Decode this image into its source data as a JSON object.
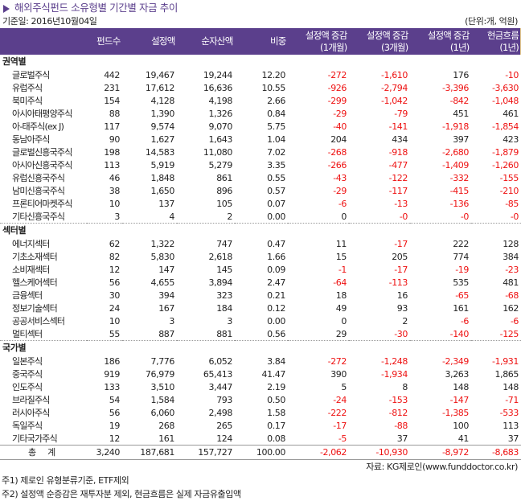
{
  "title": "해외주식펀드 소유형별 기간별 자금 추이",
  "base_date": "기준일: 2016년10월04일",
  "unit": "(단위:개, 억원)",
  "columns": [
    "",
    "펀드수",
    "설정액",
    "순자산액",
    "비중",
    "설정액 증감\n(1개월)",
    "설정액 증감\n(3개월)",
    "설정액 증감\n(1년)",
    "현금흐름\n(1년)"
  ],
  "sections": [
    {
      "name": "권역별",
      "rows": [
        [
          "글로벌주식",
          "442",
          "19,467",
          "19,244",
          "12.20",
          "-272",
          "-1,610",
          "176",
          "-10"
        ],
        [
          "유럽주식",
          "231",
          "17,612",
          "16,636",
          "10.55",
          "-926",
          "-2,794",
          "-3,396",
          "-3,630"
        ],
        [
          "북미주식",
          "154",
          "4,128",
          "4,198",
          "2.66",
          "-299",
          "-1,042",
          "-842",
          "-1,048"
        ],
        [
          "아시아태평양주식",
          "88",
          "1,390",
          "1,326",
          "0.84",
          "-29",
          "-79",
          "451",
          "461"
        ],
        [
          "아-태주식(ex J)",
          "117",
          "9,574",
          "9,070",
          "5.75",
          "-40",
          "-141",
          "-1,918",
          "-1,854"
        ],
        [
          "동남아주식",
          "90",
          "1,627",
          "1,643",
          "1.04",
          "204",
          "434",
          "397",
          "423"
        ],
        [
          "글로벌신흥국주식",
          "198",
          "14,583",
          "11,080",
          "7.02",
          "-268",
          "-918",
          "-2,680",
          "-1,879"
        ],
        [
          "아시아신흥국주식",
          "113",
          "5,919",
          "5,279",
          "3.35",
          "-266",
          "-477",
          "-1,409",
          "-1,260"
        ],
        [
          "유럽신흥국주식",
          "46",
          "1,848",
          "861",
          "0.55",
          "-43",
          "-122",
          "-332",
          "-155"
        ],
        [
          "남미신흥국주식",
          "38",
          "1,650",
          "896",
          "0.57",
          "-29",
          "-117",
          "-415",
          "-210"
        ],
        [
          "프론티어마켓주식",
          "10",
          "137",
          "105",
          "0.07",
          "-6",
          "-13",
          "-136",
          "-85"
        ],
        [
          "기타신흥국주식",
          "3",
          "4",
          "2",
          "0.00",
          "0",
          "-0",
          "-0",
          "-0"
        ]
      ]
    },
    {
      "name": "섹터별",
      "rows": [
        [
          "에너지섹터",
          "62",
          "1,322",
          "747",
          "0.47",
          "11",
          "-17",
          "222",
          "128"
        ],
        [
          "기초소재섹터",
          "82",
          "5,830",
          "2,618",
          "1.66",
          "15",
          "205",
          "774",
          "384"
        ],
        [
          "소비재섹터",
          "12",
          "147",
          "145",
          "0.09",
          "-1",
          "-17",
          "-19",
          "-23"
        ],
        [
          "헬스케어섹터",
          "56",
          "4,655",
          "3,894",
          "2.47",
          "-64",
          "-113",
          "535",
          "481"
        ],
        [
          "금융섹터",
          "30",
          "394",
          "323",
          "0.21",
          "18",
          "16",
          "-65",
          "-68"
        ],
        [
          "정보기술섹터",
          "24",
          "167",
          "184",
          "0.12",
          "49",
          "93",
          "161",
          "162"
        ],
        [
          "공공서비스섹터",
          "10",
          "3",
          "3",
          "0.00",
          "0",
          "2",
          "-6",
          "-6"
        ],
        [
          "멀티섹터",
          "55",
          "887",
          "881",
          "0.56",
          "29",
          "-30",
          "-140",
          "-125"
        ]
      ]
    },
    {
      "name": "국가별",
      "rows": [
        [
          "일본주식",
          "186",
          "7,776",
          "6,052",
          "3.84",
          "-272",
          "-1,248",
          "-2,349",
          "-1,931"
        ],
        [
          "중국주식",
          "919",
          "76,979",
          "65,413",
          "41.47",
          "390",
          "-1,934",
          "3,263",
          "1,865"
        ],
        [
          "인도주식",
          "133",
          "3,510",
          "3,447",
          "2.19",
          "5",
          "8",
          "148",
          "148"
        ],
        [
          "브라질주식",
          "54",
          "1,584",
          "793",
          "0.50",
          "-24",
          "-153",
          "-147",
          "-71"
        ],
        [
          "러시아주식",
          "56",
          "6,060",
          "2,498",
          "1.58",
          "-222",
          "-812",
          "-1,385",
          "-533"
        ],
        [
          "독일주식",
          "19",
          "268",
          "265",
          "0.17",
          "-17",
          "-88",
          "100",
          "113"
        ],
        [
          "기타국가주식",
          "12",
          "161",
          "124",
          "0.08",
          "-5",
          "37",
          "41",
          "37"
        ]
      ]
    }
  ],
  "total": [
    "총계",
    "3,240",
    "187,681",
    "157,727",
    "100.00",
    "-2,062",
    "-10,930",
    "-8,972",
    "-8,683"
  ],
  "source": "자료: KG제로인(www.funddoctor.co.kr)",
  "notes": [
    "주1) 제로인 유형분류기준, ETF제외",
    "주2) 설정액 순증감은 재투자분 제외, 현금흐름은 실제 자금유출입액"
  ],
  "colors": {
    "header": "#5b3f8c",
    "negative": "#ee1111"
  }
}
